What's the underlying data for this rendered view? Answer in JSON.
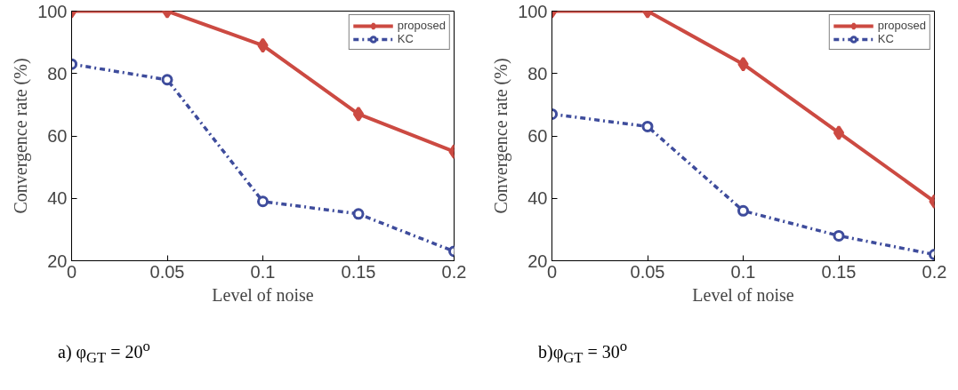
{
  "chart_data": [
    {
      "type": "line",
      "xlabel": "Level of noise",
      "ylabel": "Convergence rate (%)",
      "x": [
        0,
        0.05,
        0.1,
        0.15,
        0.2
      ],
      "xlim": [
        0,
        0.2
      ],
      "ylim": [
        20,
        100
      ],
      "xticks": [
        0,
        0.05,
        0.1,
        0.15,
        0.2
      ],
      "yticks": [
        20,
        40,
        60,
        80,
        100
      ],
      "grid": false,
      "legend": "top right",
      "annotations": [
        "a) φ$_{GT}$ = 20$^{o}$"
      ],
      "series": [
        {
          "name": "proposed",
          "color": "#cc4a42",
          "values": [
            100,
            100,
            89,
            67,
            55
          ],
          "marker": "diamond",
          "line_style": "solid"
        },
        {
          "name": "KC",
          "color": "#3e4c9c",
          "values": [
            83,
            78,
            39,
            35,
            23
          ],
          "marker": "circle",
          "line_style": "dashed"
        }
      ]
    },
    {
      "type": "line",
      "xlabel": "Level of noise",
      "ylabel": "Convergence rate (%)",
      "x": [
        0,
        0.05,
        0.1,
        0.15,
        0.2
      ],
      "xlim": [
        0,
        0.2
      ],
      "ylim": [
        20,
        100
      ],
      "xticks": [
        0,
        0.05,
        0.1,
        0.15,
        0.2
      ],
      "yticks": [
        20,
        40,
        60,
        80,
        100
      ],
      "grid": false,
      "legend": "top right",
      "annotations": [
        "b)φ$_{GT}$ = 30$^{o}$"
      ],
      "series": [
        {
          "name": "proposed",
          "color": "#cc4a42",
          "values": [
            100,
            100,
            83,
            61,
            39
          ],
          "marker": "diamond",
          "line_style": "solid"
        },
        {
          "name": "KC",
          "color": "#3e4c9c",
          "values": [
            67,
            63,
            36,
            28,
            22
          ],
          "marker": "circle",
          "line_style": "dashed"
        }
      ]
    }
  ]
}
